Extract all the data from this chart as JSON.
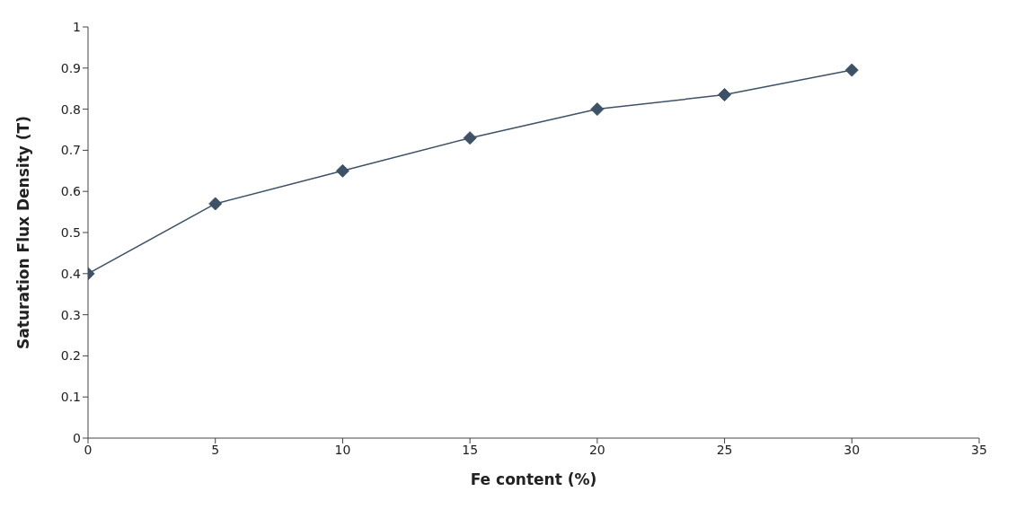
{
  "chart_data": {
    "type": "line",
    "xlabel": "Fe content (%)",
    "ylabel": "Saturation Flux Density (T)",
    "x": [
      0,
      5,
      10,
      15,
      20,
      25,
      30
    ],
    "series": [
      {
        "color": "#3d5266",
        "values": [
          0.4,
          0.57,
          0.65,
          0.73,
          0.8,
          0.835,
          0.895
        ]
      }
    ],
    "xlim": [
      0,
      35
    ],
    "xticks": [
      0,
      5,
      10,
      15,
      20,
      25,
      30,
      35
    ],
    "ylim": [
      0,
      1
    ],
    "yticks": [
      0,
      0.1,
      0.2,
      0.3,
      0.4,
      0.5,
      0.6,
      0.7,
      0.8,
      0.9,
      1
    ],
    "grid": false,
    "legend": false,
    "marker": "diamond",
    "line_style": "solid"
  }
}
